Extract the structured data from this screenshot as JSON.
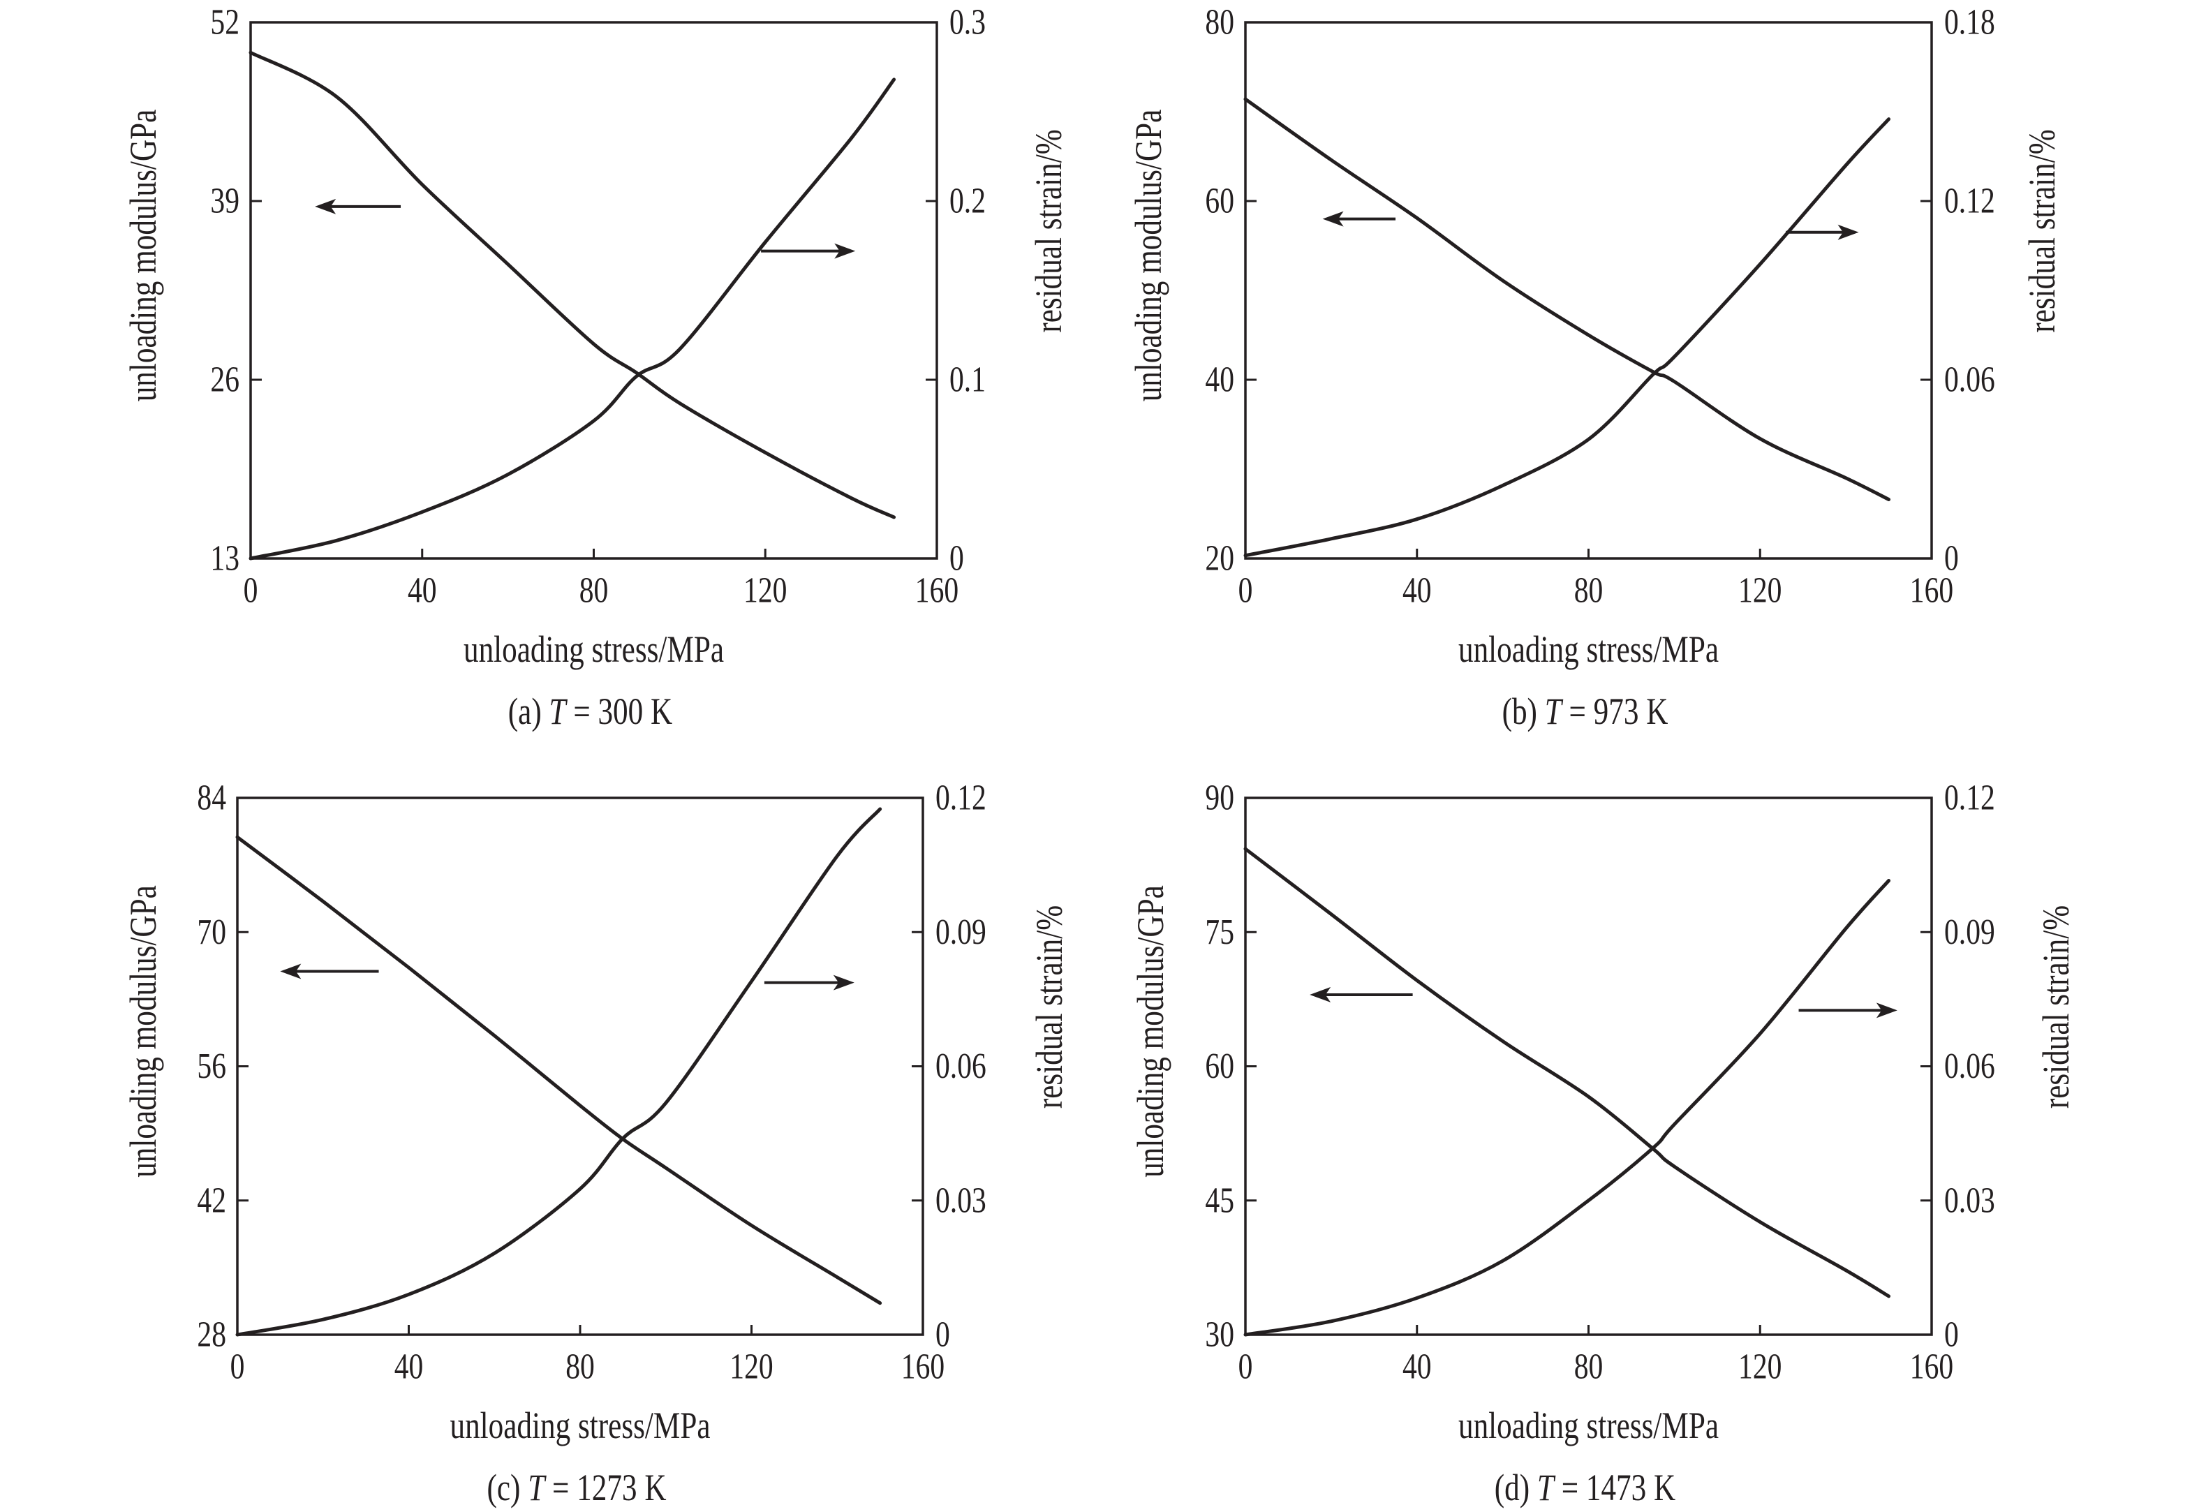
{
  "chart_data": [
    {
      "id": "a",
      "type": "line",
      "caption": {
        "prefix": "(a)",
        "variable": "T",
        "suffix": "= 300 K"
      },
      "xlabel": "unloading stress/MPa",
      "ylabel_left": "unloading modulus/GPa",
      "ylabel_right": "residual strain/%",
      "xlim": [
        0,
        160
      ],
      "xticks": [
        0,
        40,
        80,
        120,
        160
      ],
      "xtick_labels": [
        "0",
        "40",
        "80",
        "120",
        "160"
      ],
      "ylim_left": [
        13,
        52
      ],
      "yticks_left": [
        13,
        26,
        39,
        52
      ],
      "ytick_labels_left": [
        "13",
        "26",
        "39",
        "52"
      ],
      "ylim_right": [
        0,
        0.3
      ],
      "yticks_right": [
        0,
        0.1,
        0.2,
        0.3
      ],
      "ytick_labels_right": [
        "0",
        "0.1",
        "0.2",
        "0.3"
      ],
      "grid": false,
      "x": [
        0,
        20,
        40,
        60,
        80,
        90,
        100,
        120,
        140,
        150
      ],
      "series": [
        {
          "name": "unloading modulus",
          "axis": "left",
          "arrow": "left",
          "values": [
            49.8,
            46.6,
            40.2,
            34.4,
            28.6,
            26.5,
            24.3,
            20.7,
            17.4,
            16.0
          ]
        },
        {
          "name": "residual strain",
          "axis": "right",
          "arrow": "right",
          "values": [
            0,
            0.01,
            0.026,
            0.047,
            0.077,
            0.102,
            0.117,
            0.177,
            0.235,
            0.268
          ]
        }
      ],
      "arrows": [
        {
          "direction": "left",
          "points_to_axis": "left",
          "x_data": [
            35,
            15
          ],
          "y_data_left": 38.6
        },
        {
          "direction": "right",
          "points_to_axis": "right",
          "x_data": [
            119,
            141
          ],
          "y_data_right": 0.172
        }
      ]
    },
    {
      "id": "b",
      "type": "line",
      "caption": {
        "prefix": "(b)",
        "variable": "T",
        "suffix": "= 973 K"
      },
      "xlabel": "unloading stress/MPa",
      "ylabel_left": "unloading modulus/GPa",
      "ylabel_right": "residual strain/%",
      "xlim": [
        0,
        160
      ],
      "xticks": [
        0,
        40,
        80,
        120,
        160
      ],
      "xtick_labels": [
        "0",
        "40",
        "80",
        "120",
        "160"
      ],
      "ylim_left": [
        20,
        80
      ],
      "yticks_left": [
        20,
        40,
        60,
        80
      ],
      "ytick_labels_left": [
        "20",
        "40",
        "60",
        "80"
      ],
      "ylim_right": [
        0,
        0.18
      ],
      "yticks_right": [
        0,
        0.06,
        0.12,
        0.18
      ],
      "ytick_labels_right": [
        "0",
        "0.06",
        "0.12",
        "0.18"
      ],
      "grid": false,
      "x": [
        0,
        20,
        40,
        60,
        80,
        95,
        100,
        120,
        140,
        150
      ],
      "series": [
        {
          "name": "unloading modulus",
          "axis": "left",
          "arrow": "left",
          "values": [
            71.4,
            64.6,
            58.1,
            51.1,
            45.0,
            40.9,
            39.8,
            33.4,
            29.0,
            26.6
          ]
        },
        {
          "name": "residual strain",
          "axis": "right",
          "arrow": "right",
          "values": [
            0.001,
            0.0066,
            0.0132,
            0.0245,
            0.04,
            0.0617,
            0.0677,
            0.0988,
            0.132,
            0.1475
          ]
        }
      ],
      "arrows": [
        {
          "direction": "left",
          "points_to_axis": "left",
          "x_data": [
            35,
            18
          ],
          "y_data_left": 58.0
        },
        {
          "direction": "right",
          "points_to_axis": "right",
          "x_data": [
            126,
            143
          ],
          "y_data_right": 0.1095
        }
      ]
    },
    {
      "id": "c",
      "type": "line",
      "caption": {
        "prefix": "(c)",
        "variable": "T",
        "suffix": "= 1273 K"
      },
      "xlabel": "unloading stress/MPa",
      "ylabel_left": "unloading modulus/GPa",
      "ylabel_right": "residual strain/%",
      "xlim": [
        0,
        160
      ],
      "xticks": [
        0,
        40,
        80,
        120,
        160
      ],
      "xtick_labels": [
        "0",
        "40",
        "80",
        "120",
        "160"
      ],
      "ylim_left": [
        28,
        84
      ],
      "yticks_left": [
        28,
        42,
        56,
        70,
        84
      ],
      "ytick_labels_left": [
        "28",
        "42",
        "56",
        "70",
        "84"
      ],
      "ylim_right": [
        0,
        0.12
      ],
      "yticks_right": [
        0,
        0.03,
        0.06,
        0.09,
        0.12
      ],
      "ytick_labels_right": [
        "0",
        "0.03",
        "0.06",
        "0.09",
        "0.12"
      ],
      "grid": false,
      "x": [
        0,
        20,
        40,
        60,
        80,
        90,
        100,
        120,
        140,
        150
      ],
      "series": [
        {
          "name": "unloading modulus",
          "axis": "left",
          "arrow": "left",
          "values": [
            79.9,
            73.2,
            66.3,
            59.2,
            51.9,
            48.4,
            45.4,
            39.4,
            34.0,
            31.3
          ]
        },
        {
          "name": "residual strain",
          "axis": "right",
          "arrow": "right",
          "values": [
            0,
            0.0034,
            0.009,
            0.0182,
            0.0326,
            0.0439,
            0.0518,
            0.079,
            0.107,
            0.1175
          ]
        }
      ],
      "arrows": [
        {
          "direction": "left",
          "points_to_axis": "left",
          "x_data": [
            33,
            10
          ],
          "y_data_left": 65.9
        },
        {
          "direction": "right",
          "points_to_axis": "right",
          "x_data": [
            123,
            144
          ],
          "y_data_right": 0.0787
        }
      ]
    },
    {
      "id": "d",
      "type": "line",
      "caption": {
        "prefix": "(d)",
        "variable": "T",
        "suffix": "= 1473 K"
      },
      "xlabel": "unloading stress/MPa",
      "ylabel_left": "unloading modulus/GPa",
      "ylabel_right": "residual strain/%",
      "xlim": [
        0,
        160
      ],
      "xticks": [
        0,
        40,
        80,
        120,
        160
      ],
      "xtick_labels": [
        "0",
        "40",
        "80",
        "120",
        "160"
      ],
      "ylim_left": [
        30,
        90
      ],
      "yticks_left": [
        30,
        45,
        60,
        75,
        90
      ],
      "ytick_labels_left": [
        "30",
        "45",
        "60",
        "75",
        "90"
      ],
      "ylim_right": [
        0,
        0.12
      ],
      "yticks_right": [
        0,
        0.03,
        0.06,
        0.09,
        0.12
      ],
      "ytick_labels_right": [
        "0",
        "0.03",
        "0.06",
        "0.09",
        "0.12"
      ],
      "grid": false,
      "x": [
        0,
        20,
        40,
        60,
        80,
        95,
        100,
        120,
        140,
        150
      ],
      "series": [
        {
          "name": "unloading modulus",
          "axis": "left",
          "arrow": "left",
          "values": [
            84.3,
            77.0,
            69.6,
            62.8,
            56.6,
            50.8,
            48.8,
            42.6,
            37.2,
            34.3
          ]
        },
        {
          "name": "residual strain",
          "axis": "right",
          "arrow": "right",
          "values": [
            0,
            0.003,
            0.0082,
            0.0165,
            0.03,
            0.0417,
            0.047,
            0.0673,
            0.0908,
            0.1015
          ]
        }
      ],
      "arrows": [
        {
          "direction": "left",
          "points_to_axis": "left",
          "x_data": [
            39,
            15
          ],
          "y_data_left": 68.0
        },
        {
          "direction": "right",
          "points_to_axis": "right",
          "x_data": [
            129,
            152
          ],
          "y_data_right": 0.0725
        }
      ]
    }
  ]
}
